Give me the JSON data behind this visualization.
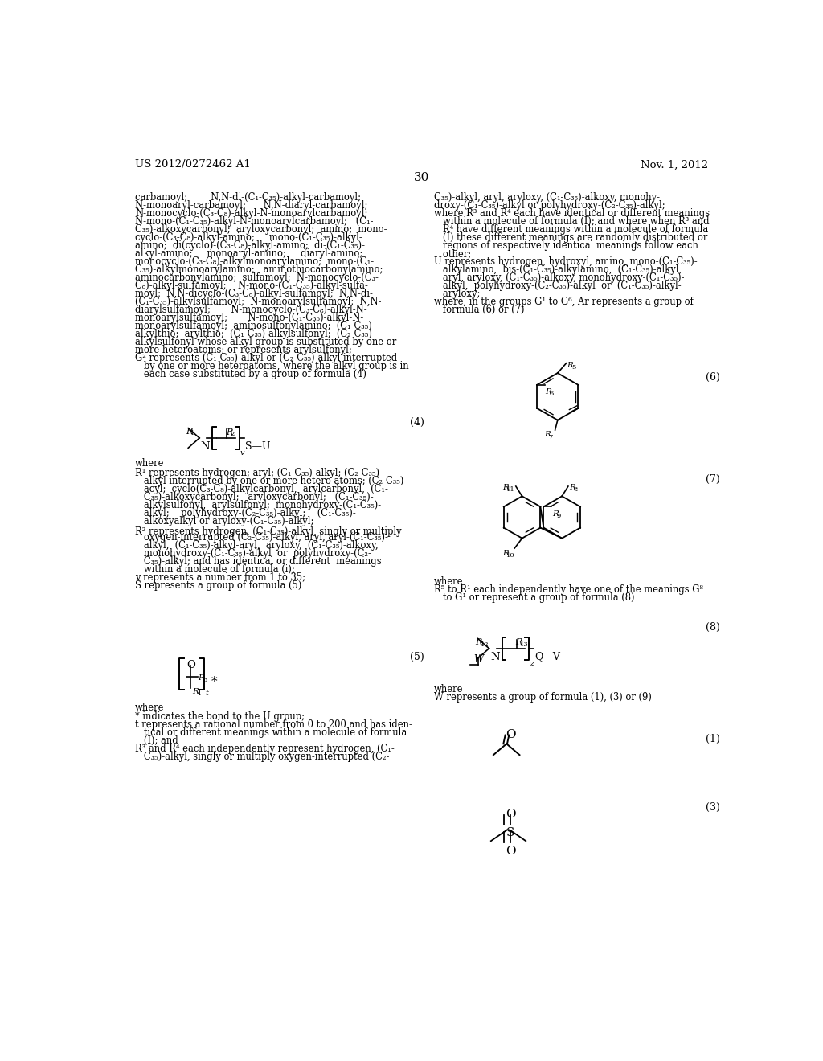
{
  "page_number": "30",
  "patent_number": "US 2012/0272462 A1",
  "date": "Nov. 1, 2012",
  "bg": "#ffffff",
  "left_col_lines": [
    "carbamoyl;        N,N-di-(C₁-C₃₅)-alkyl-carbamoyl;",
    "N-monoaryl-carbamoyl;      N,N-diaryl-carbamoyl;",
    "N-monocyclo-(C₃-C₈)-alkyl-N-monoarylcarbamoyl;",
    "N-mono-(C₁-C₃₅)-alkyl-N-monoarylcarbamoyl;   (C₁-",
    "C₃₅)-alkoxycarbonyl;  aryloxycarbonyl;  amino;  mono-",
    "cyclo-(C₃-C₈)-alkyl-amino;     mono-(C₁-C₃₅)-alkyl-",
    "amino;  di(cyclo)-(C₃-C₈)-alkyl-amino;  di-(C₁-C₃₅)-",
    "alkyl-amino;     monoaryl-amino;     diaryl-amino;",
    "monocyclo-(C₃-C₈)-alkylmonoarylamino;  mono-(C₁-",
    "C₃₅)-alkylmonoarylamino;   aminothiocarbonylamino;",
    "aminocarbonylamino;  sulfamoyl;  N-monocyclo-(C₃-",
    "C₈)-alkyl-sulfamoyl;    N-mono-(C₁-C₃₅)-alkyl-sulfa-",
    "moyl;  N,N-dicyclo-(C₃-C₈)-alkyl-sulfamoyl;  N,N-di-",
    "(C₁-C₃₅)-alkylsulfamoyl;  N-monoarylsulfamoyl;  N,N-",
    "diarylsulfamoyl;       N-monocyclo-(C₃-C₈)-alkyl-N-",
    "monoarylsulfamoyl;       N-mono-(C₁-C₃₅)-alkyl-N-",
    "monoarylsulfamoyl;  aminosulfonylamino;  (C₁-C₃₅)-",
    "alkylthio;  arylthio;  (C₁-C₃₅)-alkylsulfonyl;  (C₂-C₃₅)-",
    "alkylsulfonyl whose alkyl group is substituted by one or",
    "more heteroatoms; or represents arylsulfonyl;",
    "G² represents (C₁-C₃₅)-alkyl or (C₂-C₃₅)-alkyl interrupted",
    "   by one or more heteroatoms, where the alkyl group is in",
    "   each case substituted by a group of formula (4)"
  ],
  "right_col_lines_top": [
    "C₃₅)-alkyl, aryl, aryloxy, (C₁-C₃₅)-alkoxy, monohy-",
    "droxy-(C₁-C₃₅)-alkyl or polyhydroxy-(C₂-C₃₅)-alkyl;",
    "where R³ and R⁴ each have identical or different meanings",
    "   within a molecule of formula (I); and where when R³ and",
    "   R⁴ have different meanings within a molecule of formula",
    "   (I) these different meanings are randomly distributed or",
    "   regions of respectively identical meanings follow each",
    "   other;",
    "U represents hydrogen, hydroxyl, amino, mono-(C₁-C₃₅)-",
    "   alkylamino,  bis-(C₁-C₃₅)-alkylamino,  (C₁-C₃₅)-alkyl,",
    "   aryl, aryloxy, (C₁-C₃₅)-alkoxy, monohydroxy-(C₁-C₃₅)-",
    "   alkyl,  polyhydroxy-(C₂-C₃₅)-alkyl  or  (C₁-C₃₅)-alkyl-",
    "   aryloxy;",
    "where, in the groups G¹ to G⁶, Ar represents a group of",
    "   formula (6) or (7)"
  ],
  "left_col_lines2": [
    "where",
    "R¹ represents hydrogen; aryl; (C₁-C₃₅)-alkyl; (C₂-C₃₅)-",
    "   alkyl interrupted by one or more hetero atoms; (C₂-C₃₅)-",
    "   acyl;  cyclo(C₃-C₈)-alkylcarbonyl,  arylcarbonyl,  (C₁-",
    "   C₃₅)-alkoxycarbonyl;   aryloxycarbonyl;   (C₁-C₃₅)-",
    "   alkylsulfonyl,  arylsulfonyl;  monohydroxy-(C₁-C₃₅)-",
    "   alkyl;    polyhydroxy-(C₂-C₃₅)-alkyl;    (C₁-C₃₅)-",
    "   alkoxyalkyl or aryloxy-(C₁-C₃₅)-alkyl;",
    "R² represents hydrogen, (C₁-C₃₅)-alkyl, singly or multiply",
    "   oxygen-interrupted (C₂-C₃₅)-alkyl, aryl, aryl-(C₁-C₃₅)-",
    "   alkyl,  (C₁-C₃₅)-alkyl-aryl,  aryloxy,  (C₁-C₃₅)-alkoxy,",
    "   monohydroxy-(C₁-C₃₅)-alkyl  or  polyhydroxy-(C₂-",
    "   C₃₅)-alkyl; and has identical or different  meanings",
    "   within a molecule of formula (i);",
    "v represents a number from 1 to 35;",
    "S represents a group of formula (5)"
  ],
  "right_col_lines2": [
    "where",
    "R⁵ to R¹ each independently have one of the meanings G⁸",
    "   to G¹ or represent a group of formula (8)"
  ],
  "right_col_lines3": [
    "where",
    "W represents a group of formula (1), (3) or (9)"
  ],
  "left_col_lines3": [
    "where",
    "* indicates the bond to the U group;",
    "t represents a rational number from 0 to 200 and has iden-",
    "   tical or different meanings within a molecule of formula",
    "   (I); and",
    "R³ and R⁴ each independently represent hydrogen, (C₁-",
    "   C₃₅)-alkyl, singly or multiply oxygen-interrupted (C₂-"
  ]
}
